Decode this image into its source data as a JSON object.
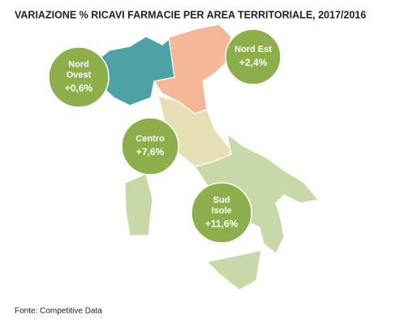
{
  "title": "VARIAZIONE % RICAVI FARMACIE PER AREA TERRITORIALE, 2017/2016",
  "regions": [
    {
      "name_lines": [
        "Nord",
        "Ovest"
      ],
      "value": "+0,6%"
    },
    {
      "name_lines": [
        "Nord Est"
      ],
      "value": "+2,4%"
    },
    {
      "name_lines": [
        "Centro"
      ],
      "value": "+7,6%"
    },
    {
      "name_lines": [
        "Sud",
        "Isole"
      ],
      "value": "+11,6%"
    }
  ],
  "source": "Fonte: Competitive Data"
}
